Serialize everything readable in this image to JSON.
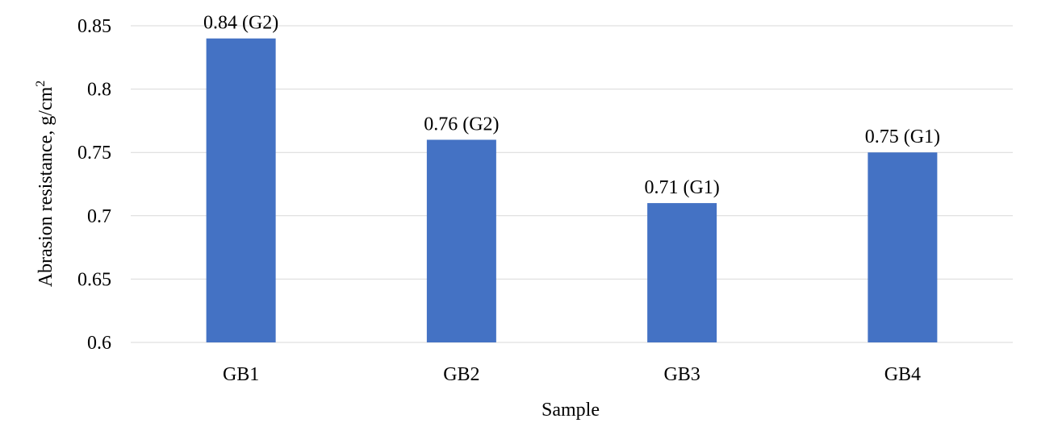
{
  "chart_data": {
    "type": "bar",
    "categories": [
      "GB1",
      "GB2",
      "GB3",
      "GB4"
    ],
    "values": [
      0.84,
      0.76,
      0.71,
      0.75
    ],
    "data_labels": [
      "0.84 (G2)",
      "0.76 (G2)",
      "0.71 (G1)",
      "0.75 (G1)"
    ],
    "title": "",
    "xlabel": "Sample",
    "ylabel_text": "Abrasion  resistance,  g/cm",
    "ylabel_superscript": "2",
    "ylim": [
      0.6,
      0.85
    ],
    "yticks": [
      0.6,
      0.65,
      0.7,
      0.75,
      0.8,
      0.85
    ],
    "ytick_labels": [
      "0.6",
      "0.65",
      "0.7",
      "0.75",
      "0.8",
      "0.85"
    ],
    "grid": true,
    "legend": "none",
    "bar_color": "#4472c4"
  }
}
